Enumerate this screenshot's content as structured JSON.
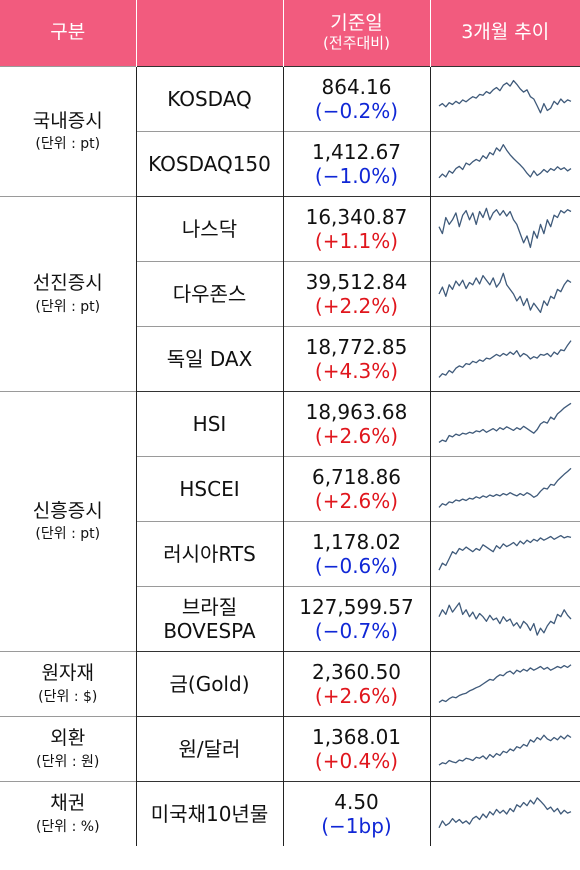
{
  "header": {
    "category": "구분",
    "base_value": "기준일",
    "base_value_sub": "(전주대비)",
    "trend": "3개월 추이"
  },
  "colors": {
    "header_bg": "#f25b7e",
    "up": "#e0161d",
    "down": "#1027d6",
    "sparkline": "#3f5a7a"
  },
  "groups": [
    {
      "name": "국내증시",
      "unit": "(단위 : pt)",
      "rows": [
        {
          "name": "KOSDAQ",
          "value": "864.16",
          "change": "(−0.2%)",
          "direction": "down",
          "trend": [
            0.35,
            0.4,
            0.33,
            0.42,
            0.38,
            0.45,
            0.4,
            0.48,
            0.44,
            0.5,
            0.55,
            0.52,
            0.6,
            0.58,
            0.66,
            0.62,
            0.7,
            0.75,
            0.68,
            0.8,
            0.85,
            0.78,
            0.9,
            0.82,
            0.72,
            0.65,
            0.7,
            0.55,
            0.5,
            0.35,
            0.2,
            0.4,
            0.25,
            0.3,
            0.45,
            0.38,
            0.5,
            0.42,
            0.48,
            0.45
          ]
        },
        {
          "name": "KOSDAQ150",
          "value": "1,412.67",
          "change": "(−1.0%)",
          "direction": "down",
          "trend": [
            0.2,
            0.28,
            0.22,
            0.35,
            0.3,
            0.4,
            0.45,
            0.38,
            0.52,
            0.48,
            0.55,
            0.6,
            0.56,
            0.68,
            0.62,
            0.75,
            0.7,
            0.85,
            0.78,
            0.92,
            0.8,
            0.7,
            0.62,
            0.55,
            0.48,
            0.4,
            0.3,
            0.22,
            0.35,
            0.25,
            0.3,
            0.38,
            0.32,
            0.4,
            0.36,
            0.44,
            0.38,
            0.42,
            0.35,
            0.4
          ]
        }
      ]
    },
    {
      "name": "선진증시",
      "unit": "(단위 : pt)",
      "rows": [
        {
          "name": "나스닥",
          "value": "16,340.87",
          "change": "(+1.1%)",
          "direction": "up",
          "trend": [
            0.55,
            0.4,
            0.75,
            0.6,
            0.7,
            0.85,
            0.55,
            0.8,
            0.9,
            0.7,
            0.85,
            0.6,
            0.88,
            0.75,
            0.95,
            0.7,
            0.85,
            0.92,
            0.8,
            0.9,
            0.78,
            0.88,
            0.7,
            0.6,
            0.4,
            0.2,
            0.35,
            0.1,
            0.45,
            0.3,
            0.6,
            0.4,
            0.7,
            0.55,
            0.8,
            0.75,
            0.9,
            0.85,
            0.92,
            0.88
          ]
        },
        {
          "name": "다우존스",
          "value": "39,512.84",
          "change": "(+2.2%)",
          "direction": "up",
          "trend": [
            0.5,
            0.65,
            0.45,
            0.7,
            0.6,
            0.78,
            0.68,
            0.8,
            0.62,
            0.75,
            0.7,
            0.85,
            0.72,
            0.9,
            0.8,
            0.7,
            0.85,
            0.65,
            0.75,
            0.95,
            0.7,
            0.6,
            0.5,
            0.35,
            0.45,
            0.25,
            0.4,
            0.15,
            0.3,
            0.2,
            0.1,
            0.35,
            0.25,
            0.45,
            0.4,
            0.6,
            0.55,
            0.7,
            0.8,
            0.75
          ]
        },
        {
          "name": "독일 DAX",
          "value": "18,772.85",
          "change": "(+4.3%)",
          "direction": "up",
          "trend": [
            0.1,
            0.18,
            0.15,
            0.25,
            0.2,
            0.3,
            0.35,
            0.32,
            0.4,
            0.38,
            0.45,
            0.42,
            0.48,
            0.45,
            0.52,
            0.5,
            0.55,
            0.6,
            0.56,
            0.62,
            0.58,
            0.65,
            0.6,
            0.68,
            0.55,
            0.62,
            0.58,
            0.5,
            0.55,
            0.52,
            0.6,
            0.58,
            0.62,
            0.55,
            0.65,
            0.6,
            0.7,
            0.68,
            0.8,
            0.9
          ]
        }
      ]
    },
    {
      "name": "신흥증시",
      "unit": "(단위 : pt)",
      "rows": [
        {
          "name": "HSI",
          "value": "18,963.68",
          "change": "(+2.6%)",
          "direction": "up",
          "trend": [
            0.1,
            0.15,
            0.12,
            0.25,
            0.22,
            0.28,
            0.25,
            0.3,
            0.28,
            0.32,
            0.3,
            0.35,
            0.33,
            0.38,
            0.32,
            0.36,
            0.4,
            0.35,
            0.42,
            0.38,
            0.44,
            0.4,
            0.36,
            0.42,
            0.38,
            0.45,
            0.4,
            0.35,
            0.3,
            0.38,
            0.5,
            0.55,
            0.52,
            0.65,
            0.6,
            0.72,
            0.78,
            0.85,
            0.9,
            0.95
          ]
        },
        {
          "name": "HSCEI",
          "value": "6,718.86",
          "change": "(+2.6%)",
          "direction": "up",
          "trend": [
            0.1,
            0.18,
            0.15,
            0.22,
            0.2,
            0.26,
            0.24,
            0.28,
            0.25,
            0.3,
            0.28,
            0.33,
            0.3,
            0.35,
            0.32,
            0.37,
            0.34,
            0.38,
            0.35,
            0.4,
            0.37,
            0.42,
            0.38,
            0.35,
            0.4,
            0.36,
            0.42,
            0.38,
            0.32,
            0.36,
            0.45,
            0.52,
            0.5,
            0.6,
            0.58,
            0.68,
            0.75,
            0.82,
            0.88,
            0.95
          ]
        },
        {
          "name": "러시아RTS",
          "value": "1,178.02",
          "change": "(−0.6%)",
          "direction": "down",
          "trend": [
            0.15,
            0.3,
            0.25,
            0.4,
            0.55,
            0.5,
            0.62,
            0.58,
            0.65,
            0.6,
            0.55,
            0.62,
            0.58,
            0.7,
            0.65,
            0.6,
            0.55,
            0.68,
            0.62,
            0.72,
            0.66,
            0.7,
            0.75,
            0.68,
            0.78,
            0.72,
            0.8,
            0.75,
            0.82,
            0.78,
            0.85,
            0.8,
            0.84,
            0.88,
            0.82,
            0.86,
            0.9,
            0.85,
            0.88,
            0.86
          ]
        },
        {
          "name": "브라질\nBOVESPA",
          "value": "127,599.57",
          "change": "(−0.7%)",
          "direction": "down",
          "trend": [
            0.55,
            0.7,
            0.6,
            0.8,
            0.65,
            0.75,
            0.85,
            0.6,
            0.7,
            0.55,
            0.65,
            0.5,
            0.62,
            0.55,
            0.45,
            0.58,
            0.48,
            0.52,
            0.4,
            0.55,
            0.45,
            0.5,
            0.35,
            0.42,
            0.3,
            0.45,
            0.38,
            0.25,
            0.4,
            0.15,
            0.3,
            0.2,
            0.35,
            0.45,
            0.4,
            0.6,
            0.55,
            0.7,
            0.58,
            0.5
          ]
        }
      ]
    },
    {
      "name": "원자재",
      "unit": "(단위 : $)",
      "rows": [
        {
          "name": "금(Gold)",
          "value": "2,360.50",
          "change": "(+2.6%)",
          "direction": "up",
          "trend": [
            0.1,
            0.15,
            0.12,
            0.18,
            0.22,
            0.2,
            0.25,
            0.28,
            0.3,
            0.35,
            0.38,
            0.42,
            0.45,
            0.5,
            0.55,
            0.6,
            0.58,
            0.65,
            0.7,
            0.68,
            0.75,
            0.78,
            0.72,
            0.8,
            0.76,
            0.82,
            0.78,
            0.85,
            0.8,
            0.84,
            0.88,
            0.82,
            0.86,
            0.8,
            0.84,
            0.88,
            0.85,
            0.9,
            0.86,
            0.92
          ]
        }
      ]
    },
    {
      "name": "외환",
      "unit": "(단위 : 원)",
      "rows": [
        {
          "name": "원/달러",
          "value": "1,368.01",
          "change": "(+0.4%)",
          "direction": "up",
          "trend": [
            0.15,
            0.2,
            0.18,
            0.25,
            0.22,
            0.2,
            0.26,
            0.24,
            0.3,
            0.28,
            0.25,
            0.32,
            0.3,
            0.35,
            0.28,
            0.38,
            0.32,
            0.4,
            0.36,
            0.45,
            0.42,
            0.5,
            0.46,
            0.55,
            0.52,
            0.6,
            0.56,
            0.7,
            0.65,
            0.75,
            0.7,
            0.8,
            0.72,
            0.68,
            0.75,
            0.7,
            0.78,
            0.72,
            0.8,
            0.75
          ]
        }
      ]
    },
    {
      "name": "채권",
      "unit": "(단위 : %)",
      "rows": [
        {
          "name": "미국채10년물",
          "value": "4.50",
          "change": "(−1bp)",
          "direction": "down",
          "trend": [
            0.2,
            0.35,
            0.25,
            0.3,
            0.4,
            0.32,
            0.38,
            0.3,
            0.35,
            0.28,
            0.4,
            0.45,
            0.38,
            0.5,
            0.42,
            0.55,
            0.48,
            0.6,
            0.52,
            0.58,
            0.5,
            0.62,
            0.55,
            0.7,
            0.65,
            0.75,
            0.68,
            0.8,
            0.72,
            0.85,
            0.78,
            0.7,
            0.6,
            0.65,
            0.55,
            0.62,
            0.5,
            0.58,
            0.52,
            0.55
          ]
        }
      ]
    }
  ]
}
